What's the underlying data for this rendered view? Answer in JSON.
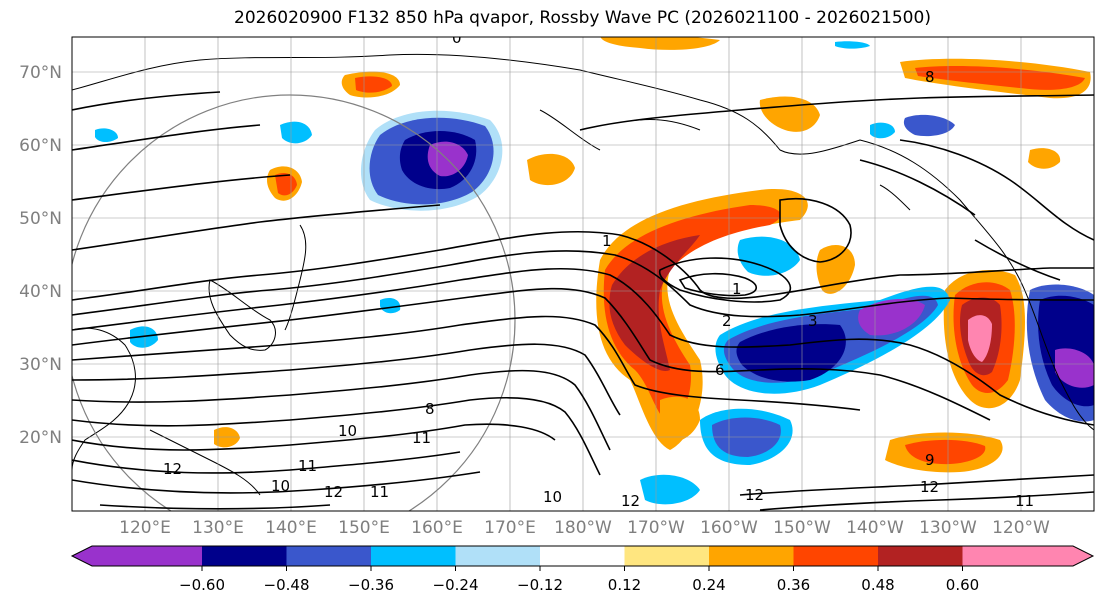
{
  "title": "2026020900 F132 850 hPa qvapor, Rossby Wave PC (2026021100 - 2026021500)",
  "map": {
    "lat_labels": [
      "70°N",
      "60°N",
      "50°N",
      "40°N",
      "30°N",
      "20°N"
    ],
    "lon_labels": [
      "120°E",
      "130°E",
      "140°E",
      "150°E",
      "160°E",
      "170°E",
      "180°W",
      "170°W",
      "160°W",
      "150°W",
      "140°W",
      "130°W",
      "120°W"
    ],
    "contour_labels": [
      "1",
      "1",
      "2",
      "3",
      "6",
      "8",
      "10",
      "11",
      "12",
      "10",
      "11",
      "12",
      "10",
      "11",
      "12",
      "12",
      "12",
      "11",
      "9",
      "0",
      "8"
    ]
  },
  "colorbar": {
    "tick_labels": [
      "−0.60",
      "−0.48",
      "−0.36",
      "−0.24",
      "−0.12",
      "0.12",
      "0.24",
      "0.36",
      "0.48",
      "0.60"
    ],
    "colors": [
      "#9932cc",
      "#00008b",
      "#3a57cc",
      "#00bfff",
      "#b0e0f8",
      "#ffffff",
      "#ffe680",
      "#ffa500",
      "#ff4500",
      "#b22222",
      "#ff85b0"
    ]
  }
}
